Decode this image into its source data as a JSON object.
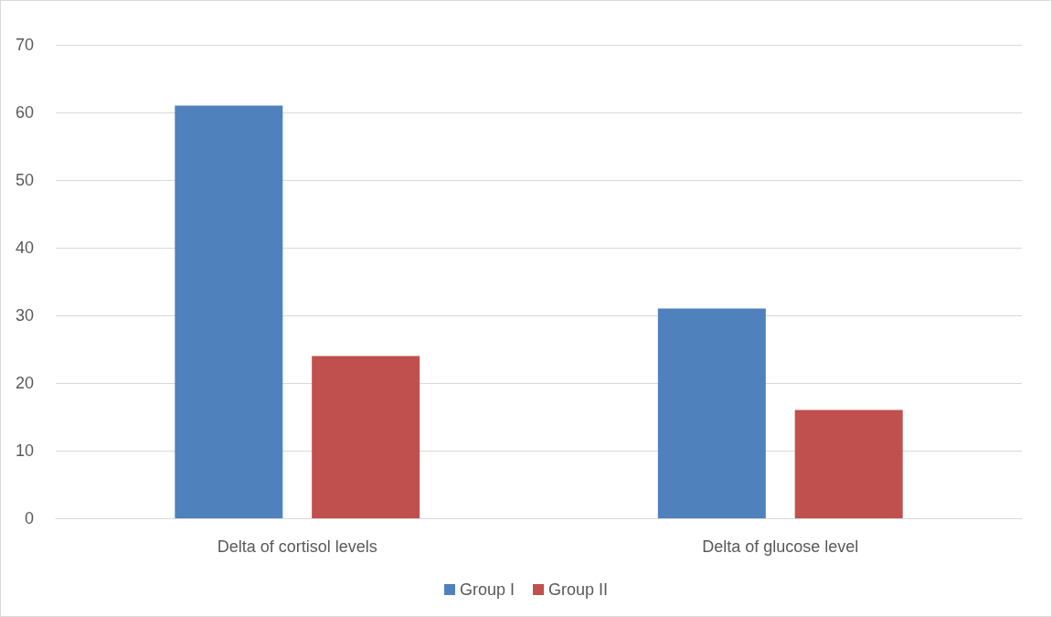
{
  "chart_data": {
    "type": "bar",
    "categories": [
      "Delta of cortisol levels",
      "Delta of glucose level"
    ],
    "series": [
      {
        "name": "Group I",
        "color": "#4f81bd",
        "values": [
          61,
          31
        ]
      },
      {
        "name": "Group II",
        "color": "#c0504d",
        "values": [
          24,
          16
        ]
      }
    ],
    "ylim": [
      0,
      70
    ],
    "yticks": [
      0,
      10,
      20,
      30,
      40,
      50,
      60,
      70
    ],
    "grid": "y",
    "legend": "bottom"
  }
}
